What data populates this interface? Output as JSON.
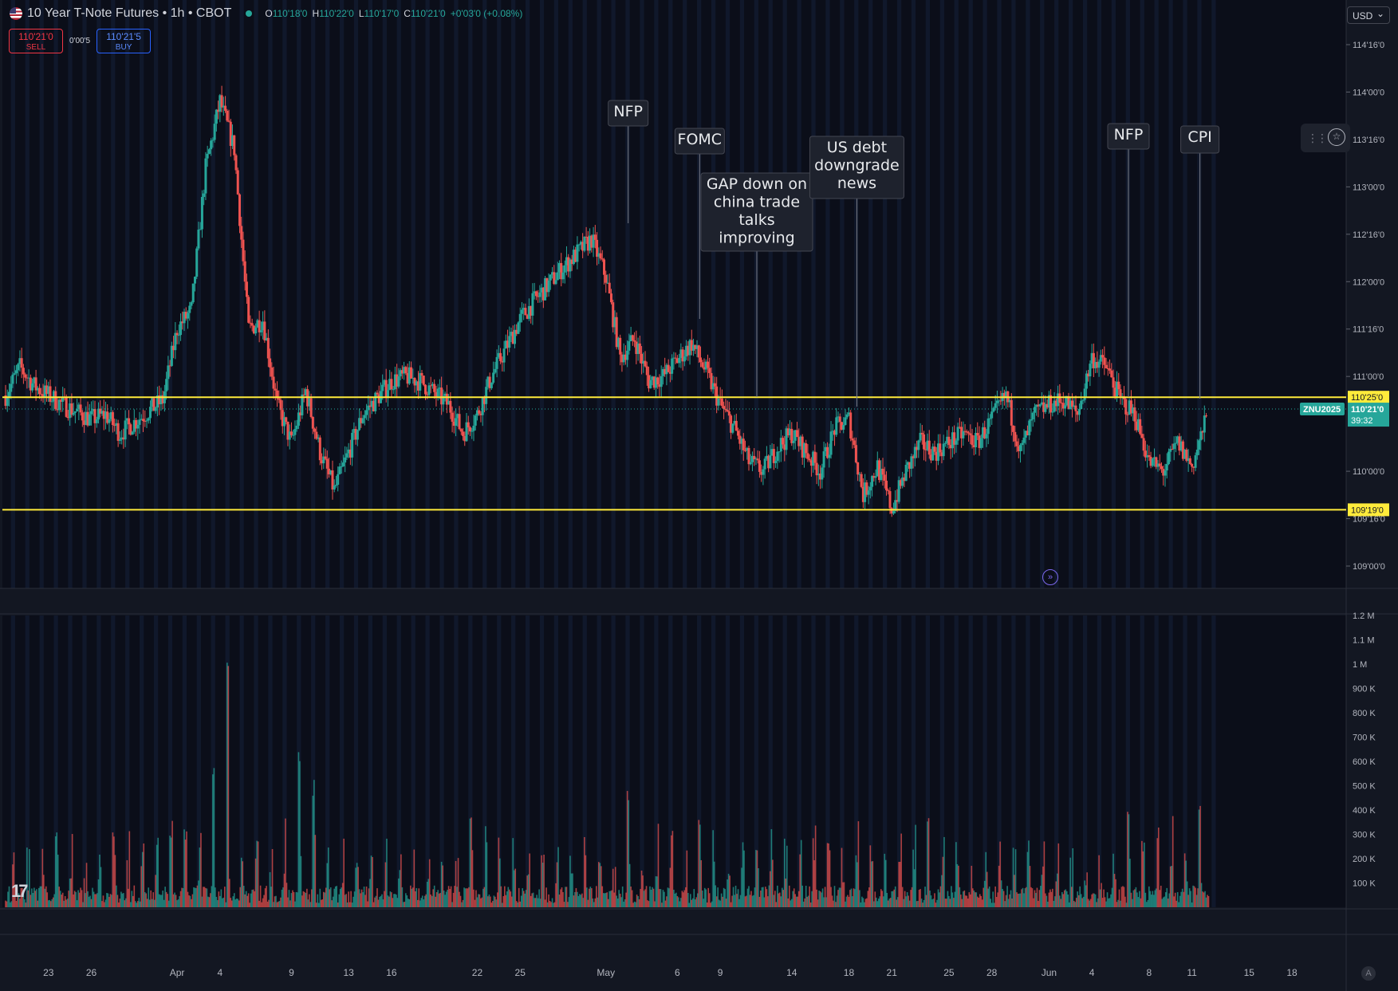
{
  "header": {
    "symbol_title": "10 Year T-Note Futures • 1h • CBOT",
    "open_label": "O",
    "open": "110'18'0",
    "high_label": "H",
    "high": "110'22'0",
    "low_label": "L",
    "low": "110'17'0",
    "close_label": "C",
    "close": "110'21'0",
    "change": "+0'03'0 (+0.08%)"
  },
  "trade": {
    "sell_price": "110'21'0",
    "sell_label": "SELL",
    "spread": "0'00'5",
    "buy_price": "110'21'5",
    "buy_label": "BUY"
  },
  "currency": "USD",
  "chart_data": [
    {
      "type": "line",
      "subtype": "candlestick-price",
      "symbol": "ZNU2025",
      "y_axis_ticks": [
        "114'16'0",
        "114'00'0",
        "113'16'0",
        "113'00'0",
        "112'16'0",
        "112'00'0",
        "111'16'0",
        "111'00'0",
        "110'00'0",
        "109'16'0",
        "109'00'0"
      ],
      "y_axis_tick_values": [
        114.5,
        114.0,
        113.5,
        113.0,
        112.5,
        112.0,
        111.5,
        111.0,
        110.0,
        109.5,
        109.0
      ],
      "ylim": [
        108.75,
        114.75
      ],
      "x_axis_ticks": [
        "23",
        "26",
        "Apr",
        "4",
        "9",
        "13",
        "16",
        "22",
        "25",
        "May",
        "6",
        "9",
        "14",
        "18",
        "21",
        "25",
        "28",
        "Jun",
        "4",
        "8",
        "11",
        "15",
        "18"
      ],
      "x_axis_tick_dates": [
        "2025-03-23",
        "2025-03-26",
        "2025-04-01",
        "2025-04-04",
        "2025-04-09",
        "2025-04-13",
        "2025-04-16",
        "2025-04-22",
        "2025-04-25",
        "2025-05-01",
        "2025-05-06",
        "2025-05-09",
        "2025-05-14",
        "2025-05-18",
        "2025-05-21",
        "2025-05-25",
        "2025-05-28",
        "2025-06-01",
        "2025-06-04",
        "2025-06-08",
        "2025-06-11",
        "2025-06-15",
        "2025-06-18"
      ],
      "price_path": {
        "dates": [
          "2025-03-20",
          "2025-03-21",
          "2025-03-22",
          "2025-03-24",
          "2025-03-26",
          "2025-03-27",
          "2025-03-28",
          "2025-03-31",
          "2025-04-01",
          "2025-04-02",
          "2025-04-03",
          "2025-04-04",
          "2025-04-05",
          "2025-04-06",
          "2025-04-07",
          "2025-04-08",
          "2025-04-09",
          "2025-04-10",
          "2025-04-11",
          "2025-04-12",
          "2025-04-13",
          "2025-04-14",
          "2025-04-16",
          "2025-04-17",
          "2025-04-18",
          "2025-04-20",
          "2025-04-21",
          "2025-04-22",
          "2025-04-23",
          "2025-04-25",
          "2025-04-26",
          "2025-04-28",
          "2025-04-30",
          "2025-05-01",
          "2025-05-02",
          "2025-05-03",
          "2025-05-04",
          "2025-05-05",
          "2025-05-07",
          "2025-05-08",
          "2025-05-09",
          "2025-05-10",
          "2025-05-11",
          "2025-05-12",
          "2025-05-13",
          "2025-05-14",
          "2025-05-16",
          "2025-05-17",
          "2025-05-18",
          "2025-05-19",
          "2025-05-20",
          "2025-05-21",
          "2025-05-22",
          "2025-05-23",
          "2025-05-24",
          "2025-05-26",
          "2025-05-27",
          "2025-05-29",
          "2025-05-30",
          "2025-05-31",
          "2025-06-01",
          "2025-06-02",
          "2025-06-03",
          "2025-06-04",
          "2025-06-05",
          "2025-06-06",
          "2025-06-07",
          "2025-06-08",
          "2025-06-09",
          "2025-06-10",
          "2025-06-11",
          "2025-06-12"
        ],
        "values": [
          110.8,
          111.1,
          110.9,
          110.7,
          110.55,
          110.6,
          110.4,
          110.75,
          111.5,
          111.7,
          113.2,
          113.9,
          113.4,
          111.5,
          111.6,
          110.7,
          110.3,
          110.85,
          110.2,
          109.8,
          110.2,
          110.6,
          110.95,
          111.0,
          110.95,
          110.7,
          110.4,
          110.6,
          111.0,
          111.6,
          111.8,
          112.15,
          112.45,
          112.05,
          111.2,
          111.4,
          110.95,
          111.0,
          111.35,
          111.05,
          110.7,
          110.45,
          110.1,
          110.0,
          110.25,
          110.4,
          110.0,
          110.45,
          110.55,
          109.75,
          110.05,
          109.6,
          110.0,
          110.3,
          110.2,
          110.4,
          110.3,
          110.8,
          110.2,
          110.6,
          110.7,
          110.75,
          110.6,
          111.2,
          111.1,
          110.75,
          110.6,
          110.1,
          110.0,
          110.3,
          110.05,
          110.55
        ]
      },
      "horizontal_levels": [
        {
          "value": 110.78125,
          "label": "110'25'0",
          "color": "#ffeb3b"
        },
        {
          "value": 109.59375,
          "label": "109'19'0",
          "color": "#ffeb3b"
        }
      ],
      "last_price": {
        "value": 110.65625,
        "label": "110'21'0",
        "countdown": "39:32",
        "symbol_label": "ZNU2025"
      },
      "annotations": [
        {
          "text": [
            "NFP"
          ],
          "date": "2025-05-02"
        },
        {
          "text": [
            "FOMC"
          ],
          "date": "2025-05-07"
        },
        {
          "text": [
            "GAP down on",
            "china trade",
            "talks",
            "improving"
          ],
          "date": "2025-05-11"
        },
        {
          "text": [
            "US debt",
            "downgrade",
            "news"
          ],
          "date": "2025-05-18"
        },
        {
          "text": [
            "NFP"
          ],
          "date": "2025-06-06"
        },
        {
          "text": [
            "CPI"
          ],
          "date": "2025-06-11"
        }
      ],
      "colors": {
        "up": "#26a69a",
        "down": "#ef5350",
        "level": "#ffeb3b",
        "background": "#131722"
      }
    },
    {
      "type": "bar",
      "subtype": "volume",
      "y_axis_ticks": [
        "1.2 M",
        "1.1 M",
        "1 M",
        "900 K",
        "800 K",
        "700 K",
        "600 K",
        "500 K",
        "400 K",
        "300 K",
        "200 K",
        "100 K"
      ],
      "y_axis_tick_values": [
        1200000,
        1100000,
        1000000,
        900000,
        800000,
        700000,
        600000,
        500000,
        400000,
        300000,
        200000,
        100000
      ],
      "ylim": [
        0,
        1200000
      ],
      "typical_volume": 60000,
      "spikes": [
        {
          "date": "2025-04-04",
          "value": 1080000
        },
        {
          "date": "2025-04-09",
          "value": 740000
        },
        {
          "date": "2025-04-03",
          "value": 600000
        },
        {
          "date": "2025-04-10",
          "value": 530000
        },
        {
          "date": "2025-05-02",
          "value": 520000
        },
        {
          "date": "2025-06-06",
          "value": 420000
        },
        {
          "date": "2025-06-11",
          "value": 500000
        },
        {
          "date": "2025-05-07",
          "value": 380000
        },
        {
          "date": "2025-03-31",
          "value": 300000
        },
        {
          "date": "2025-05-16",
          "value": 300000
        },
        {
          "date": "2025-05-23",
          "value": 400000
        }
      ]
    }
  ]
}
